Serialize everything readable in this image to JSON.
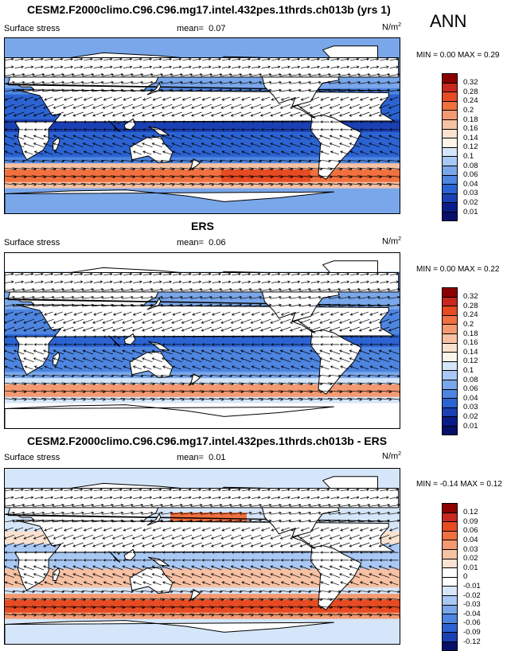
{
  "season": "ANN",
  "panels": [
    {
      "id": "model",
      "title": "CESM2.F2000climo.C96.C96.mg17.intel.432pes.1thrds.ch013b (yrs 1)",
      "variable": "Surface stress",
      "mean_label": "mean=",
      "mean": "0.07",
      "units": "N/m",
      "units_sup": "2",
      "minmax": "MIN =  0.00 MAX =  0.29",
      "colorbar_labels": [
        "0.32",
        "0.28",
        "0.24",
        "0.2",
        "0.18",
        "0.16",
        "0.14",
        "0.12",
        "0.1",
        "0.08",
        "0.06",
        "0.04",
        "0.03",
        "0.02",
        "0.01"
      ],
      "colorbar_colors": [
        "#8b0000",
        "#c8281e",
        "#e64b23",
        "#f0703f",
        "#f39a72",
        "#f7c1a4",
        "#fbe2d0",
        "#fdf4ea",
        "#d6e6fa",
        "#a9c8f3",
        "#7aa7ea",
        "#4d85e0",
        "#2c63d2",
        "#1a40b4",
        "#0a1c88",
        "#06106a"
      ]
    },
    {
      "id": "obs",
      "title": "ERS",
      "variable": "Surface stress",
      "mean_label": "mean=",
      "mean": "0.06",
      "units": "N/m",
      "units_sup": "2",
      "minmax": "MIN =  0.00 MAX =  0.22",
      "colorbar_labels": [
        "0.32",
        "0.28",
        "0.24",
        "0.2",
        "0.18",
        "0.16",
        "0.14",
        "0.12",
        "0.1",
        "0.08",
        "0.06",
        "0.04",
        "0.03",
        "0.02",
        "0.01"
      ],
      "colorbar_colors": [
        "#8b0000",
        "#c8281e",
        "#e64b23",
        "#f0703f",
        "#f39a72",
        "#f7c1a4",
        "#fbe2d0",
        "#fdf4ea",
        "#d6e6fa",
        "#a9c8f3",
        "#7aa7ea",
        "#4d85e0",
        "#2c63d2",
        "#1a40b4",
        "#0a1c88",
        "#06106a"
      ]
    },
    {
      "id": "diff",
      "title": "CESM2.F2000climo.C96.C96.mg17.intel.432pes.1thrds.ch013b - ERS",
      "variable": "Surface stress",
      "mean_label": "mean=",
      "mean": "0.01",
      "units": "N/m",
      "units_sup": "2",
      "minmax": "MIN = -0.14 MAX =  0.12",
      "colorbar_labels": [
        "0.12",
        "0.09",
        "0.06",
        "0.04",
        "0.03",
        "0.02",
        "0.01",
        "0",
        "-0.01",
        "-0.02",
        "-0.03",
        "-0.04",
        "-0.06",
        "-0.09",
        "-0.12"
      ],
      "colorbar_colors": [
        "#8b0000",
        "#c8281e",
        "#e64b23",
        "#f0703f",
        "#f39a72",
        "#f7c1a4",
        "#fbe2d0",
        "#ffffff",
        "#ffffff",
        "#d6e6fa",
        "#a9c8f3",
        "#7aa7ea",
        "#4d85e0",
        "#2c63d2",
        "#1a40b4",
        "#06106a"
      ]
    }
  ],
  "colors": {
    "land": "#ffffff",
    "coast": "#000000",
    "arrow": "#000000"
  }
}
